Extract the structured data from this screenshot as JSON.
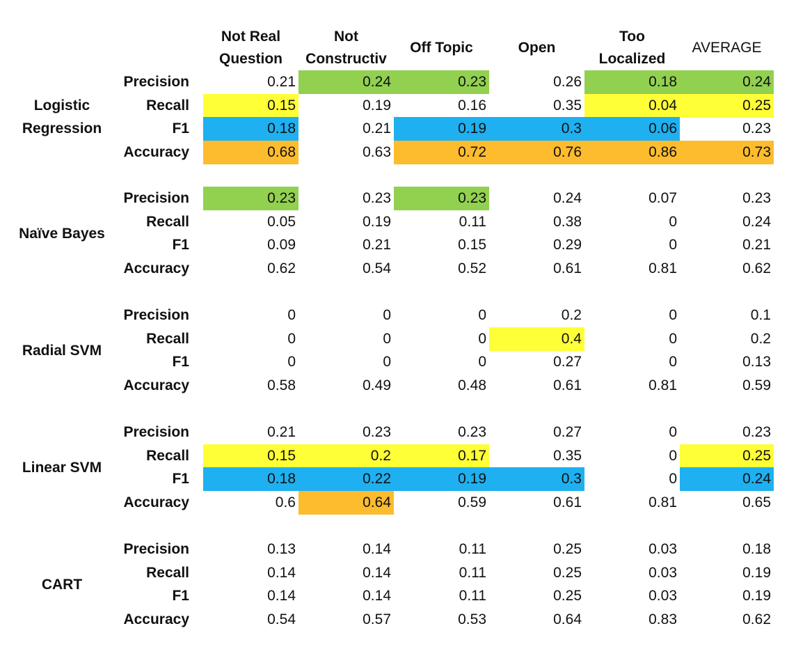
{
  "columns": [
    "Not Real\nQuestion",
    "Not\nConstructiv",
    "Off Topic",
    "Open",
    "Too\nLocalized",
    "AVERAGE"
  ],
  "metrics": [
    "Precision",
    "Recall",
    "F1",
    "Accuracy"
  ],
  "highlight_colors": {
    "green": "#92d050",
    "yellow": "#ffff37",
    "blue": "#1eb0f0",
    "orange": "#fdbc2e"
  },
  "models": [
    {
      "name": "Logistic\nRegression",
      "rows": [
        {
          "values": [
            "0.21",
            "0.24",
            "0.23",
            "0.26",
            "0.18",
            "0.24"
          ],
          "highlights": [
            "",
            "green",
            "green",
            "",
            "green",
            "green"
          ]
        },
        {
          "values": [
            "0.15",
            "0.19",
            "0.16",
            "0.35",
            "0.04",
            "0.25"
          ],
          "highlights": [
            "yellow",
            "",
            "",
            "",
            "yellow",
            "yellow"
          ]
        },
        {
          "values": [
            "0.18",
            "0.21",
            "0.19",
            "0.3",
            "0.06",
            "0.23"
          ],
          "highlights": [
            "blue",
            "",
            "blue",
            "blue",
            "blue",
            ""
          ]
        },
        {
          "values": [
            "0.68",
            "0.63",
            "0.72",
            "0.76",
            "0.86",
            "0.73"
          ],
          "highlights": [
            "orange",
            "",
            "orange",
            "orange",
            "orange",
            "orange"
          ]
        }
      ]
    },
    {
      "name": "Naïve Bayes",
      "rows": [
        {
          "values": [
            "0.23",
            "0.23",
            "0.23",
            "0.24",
            "0.07",
            "0.23"
          ],
          "highlights": [
            "green",
            "",
            "green",
            "",
            "",
            ""
          ]
        },
        {
          "values": [
            "0.05",
            "0.19",
            "0.11",
            "0.38",
            "0",
            "0.24"
          ],
          "highlights": [
            "",
            "",
            "",
            "",
            "",
            ""
          ]
        },
        {
          "values": [
            "0.09",
            "0.21",
            "0.15",
            "0.29",
            "0",
            "0.21"
          ],
          "highlights": [
            "",
            "",
            "",
            "",
            "",
            ""
          ]
        },
        {
          "values": [
            "0.62",
            "0.54",
            "0.52",
            "0.61",
            "0.81",
            "0.62"
          ],
          "highlights": [
            "",
            "",
            "",
            "",
            "",
            ""
          ]
        }
      ]
    },
    {
      "name": "Radial SVM",
      "rows": [
        {
          "values": [
            "0",
            "0",
            "0",
            "0.2",
            "0",
            "0.1"
          ],
          "highlights": [
            "",
            "",
            "",
            "",
            "",
            ""
          ]
        },
        {
          "values": [
            "0",
            "0",
            "0",
            "0.4",
            "0",
            "0.2"
          ],
          "highlights": [
            "",
            "",
            "",
            "yellow",
            "",
            ""
          ]
        },
        {
          "values": [
            "0",
            "0",
            "0",
            "0.27",
            "0",
            "0.13"
          ],
          "highlights": [
            "",
            "",
            "",
            "",
            "",
            ""
          ]
        },
        {
          "values": [
            "0.58",
            "0.49",
            "0.48",
            "0.61",
            "0.81",
            "0.59"
          ],
          "highlights": [
            "",
            "",
            "",
            "",
            "",
            ""
          ]
        }
      ]
    },
    {
      "name": "Linear SVM",
      "rows": [
        {
          "values": [
            "0.21",
            "0.23",
            "0.23",
            "0.27",
            "0",
            "0.23"
          ],
          "highlights": [
            "",
            "",
            "",
            "",
            "",
            ""
          ]
        },
        {
          "values": [
            "0.15",
            "0.2",
            "0.17",
            "0.35",
            "0",
            "0.25"
          ],
          "highlights": [
            "yellow",
            "yellow",
            "yellow",
            "",
            "",
            "yellow"
          ]
        },
        {
          "values": [
            "0.18",
            "0.22",
            "0.19",
            "0.3",
            "0",
            "0.24"
          ],
          "highlights": [
            "blue",
            "blue",
            "blue",
            "blue",
            "",
            "blue"
          ]
        },
        {
          "values": [
            "0.6",
            "0.64",
            "0.59",
            "0.61",
            "0.81",
            "0.65"
          ],
          "highlights": [
            "",
            "orange",
            "",
            "",
            "",
            ""
          ]
        }
      ]
    },
    {
      "name": "CART",
      "rows": [
        {
          "values": [
            "0.13",
            "0.14",
            "0.11",
            "0.25",
            "0.03",
            "0.18"
          ],
          "highlights": [
            "",
            "",
            "",
            "",
            "",
            ""
          ]
        },
        {
          "values": [
            "0.14",
            "0.14",
            "0.11",
            "0.25",
            "0.03",
            "0.19"
          ],
          "highlights": [
            "",
            "",
            "",
            "",
            "",
            ""
          ]
        },
        {
          "values": [
            "0.14",
            "0.14",
            "0.11",
            "0.25",
            "0.03",
            "0.19"
          ],
          "highlights": [
            "",
            "",
            "",
            "",
            "",
            ""
          ]
        },
        {
          "values": [
            "0.54",
            "0.57",
            "0.53",
            "0.64",
            "0.83",
            "0.62"
          ],
          "highlights": [
            "",
            "",
            "",
            "",
            "",
            ""
          ]
        }
      ]
    }
  ]
}
